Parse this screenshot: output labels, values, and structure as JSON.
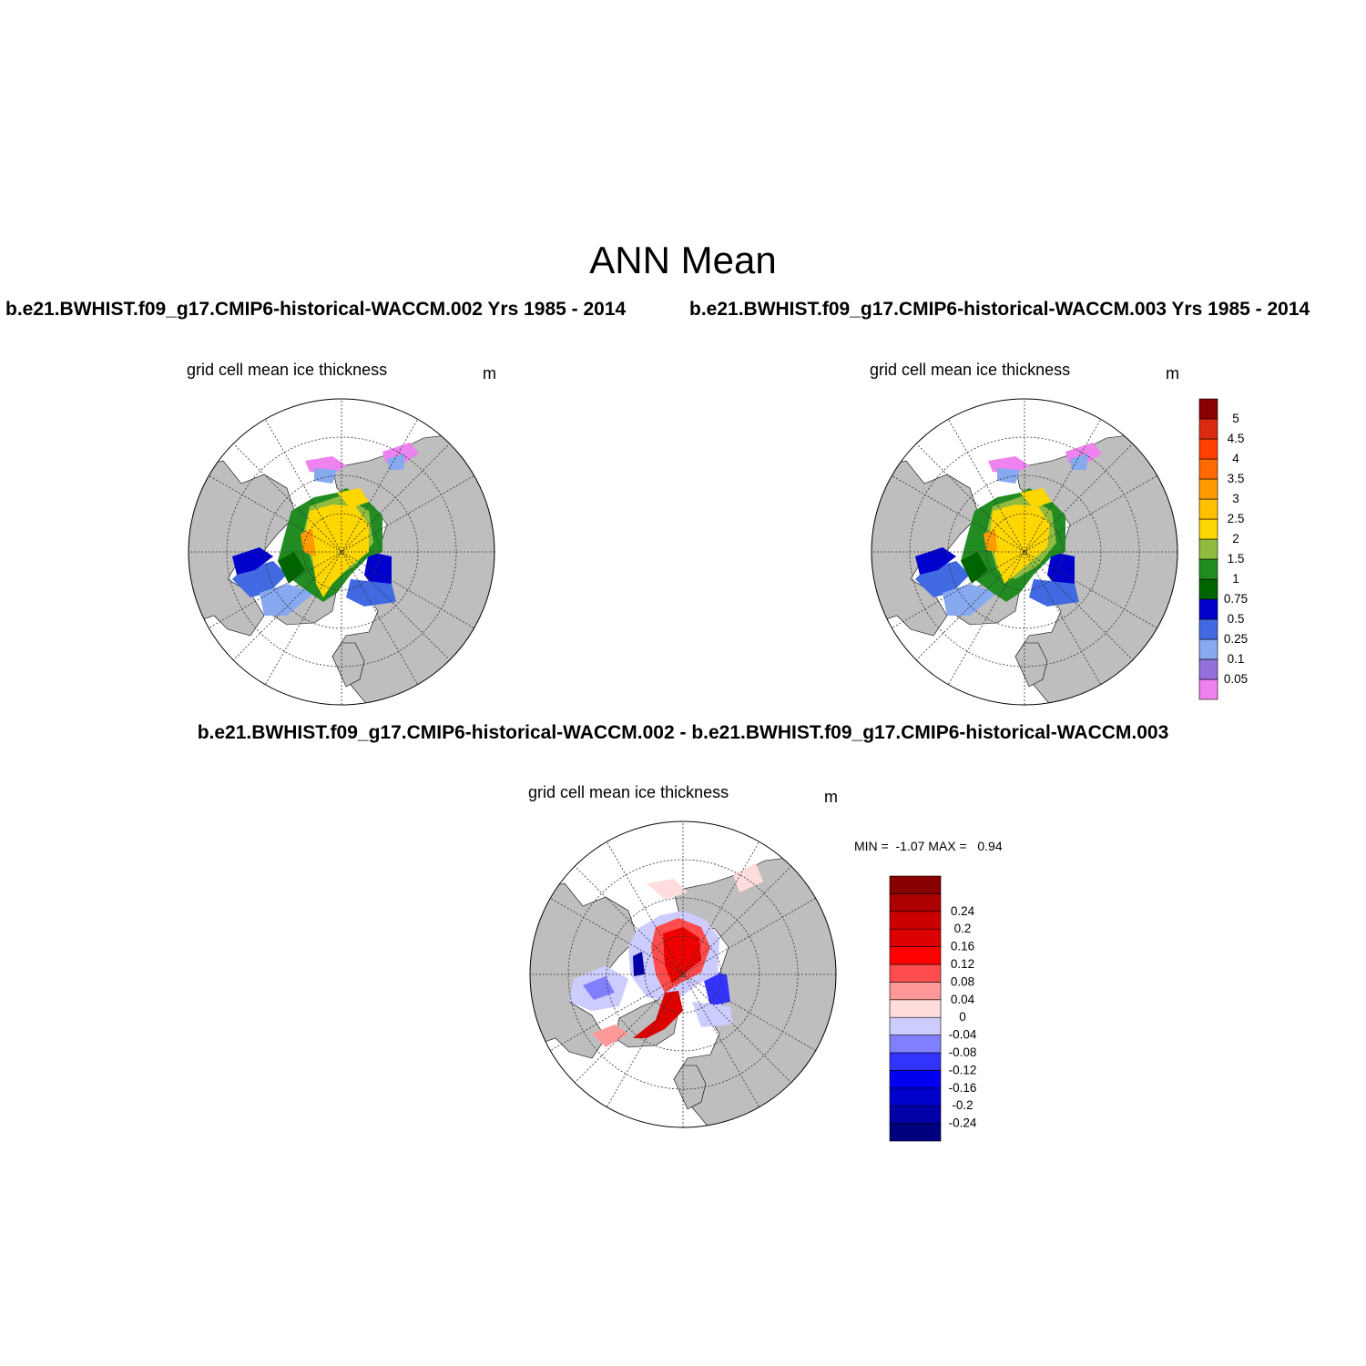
{
  "figure": {
    "title": "ANN Mean",
    "case_a_title": "b.e21.BWHIST.f09_g17.CMIP6-historical-WACCM.002  Yrs 1985 - 2014",
    "case_b_title": "b.e21.BWHIST.f09_g17.CMIP6-historical-WACCM.003  Yrs 1985 - 2014",
    "diff_title": "b.e21.BWHIST.f09_g17.CMIP6-historical-WACCM.002 - b.e21.BWHIST.f09_g17.CMIP6-historical-WACCM.003"
  },
  "panels": {
    "a": {
      "var_label": "grid cell mean ice thickness",
      "unit": "m"
    },
    "b": {
      "var_label": "grid cell mean ice thickness",
      "unit": "m"
    },
    "diff": {
      "var_label": "grid cell mean ice thickness",
      "unit": "m",
      "minmax": "MIN =  -1.07 MAX =   0.94"
    }
  },
  "colors": {
    "land": "#bebebe",
    "ocean": "#ffffff",
    "thickness_levels": [
      "#ee82ee",
      "#9370db",
      "#87a9f0",
      "#4169e1",
      "#0000cd",
      "#006400",
      "#228b22",
      "#8fbc3f",
      "#ffd700",
      "#ffc000",
      "#ff9a00",
      "#ff6a00",
      "#ff4000",
      "#dc2a10",
      "#8b0000"
    ],
    "diff_levels": [
      "#00007f",
      "#0000a6",
      "#0000cd",
      "#0000f0",
      "#3333ff",
      "#8080ff",
      "#ccccff",
      "#ffdddd",
      "#ff9999",
      "#ff4c4c",
      "#ff0000",
      "#dd0000",
      "#cc0000",
      "#aa0000",
      "#880000"
    ]
  },
  "legend_thickness": {
    "labels": [
      "0.05",
      "0.1",
      "0.25",
      "0.5",
      "0.75",
      "1",
      "1.5",
      "2",
      "2.5",
      "3",
      "3.5",
      "4",
      "4.5",
      "5"
    ]
  },
  "legend_diff": {
    "labels": [
      "-0.24",
      "-0.2",
      "-0.16",
      "-0.12",
      "-0.08",
      "-0.04",
      "0",
      "0.04",
      "0.08",
      "0.12",
      "0.16",
      "0.2",
      "0.24"
    ]
  },
  "chart_data": [
    {
      "type": "heatmap",
      "title": "grid cell mean ice thickness",
      "units": "m",
      "projection": "north polar stereographic",
      "levels": [
        0.05,
        0.1,
        0.25,
        0.5,
        0.75,
        1,
        1.5,
        2,
        2.5,
        3,
        3.5,
        4,
        4.5,
        5
      ]
    },
    {
      "type": "heatmap",
      "title": "grid cell mean ice thickness",
      "units": "m",
      "projection": "north polar stereographic",
      "levels": [
        0.05,
        0.1,
        0.25,
        0.5,
        0.75,
        1,
        1.5,
        2,
        2.5,
        3,
        3.5,
        4,
        4.5,
        5
      ]
    },
    {
      "type": "heatmap",
      "title": "grid cell mean ice thickness",
      "units": "m",
      "projection": "north polar stereographic",
      "levels": [
        -0.24,
        -0.2,
        -0.16,
        -0.12,
        -0.08,
        -0.04,
        0,
        0.04,
        0.08,
        0.12,
        0.16,
        0.2,
        0.24
      ],
      "min": -1.07,
      "max": 0.94
    }
  ]
}
